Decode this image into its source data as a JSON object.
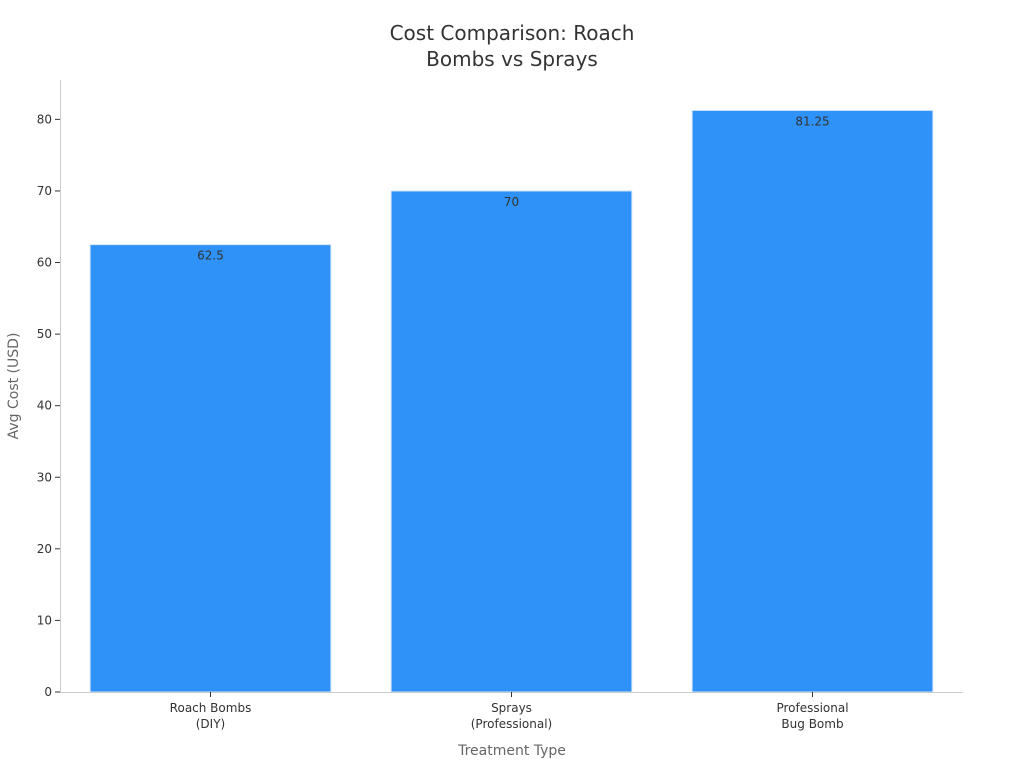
{
  "chart_data": {
    "type": "bar",
    "title": [
      "Cost Comparison: Roach",
      "Bombs vs Sprays"
    ],
    "xlabel": "Treatment Type",
    "ylabel": "Avg Cost (USD)",
    "categories": [
      [
        "Roach Bombs",
        "(DIY)"
      ],
      [
        "Sprays",
        "(Professional)"
      ],
      [
        "Professional",
        "Bug Bomb"
      ]
    ],
    "values": [
      62.5,
      70,
      81.25
    ],
    "data_labels": [
      "62.5",
      "70",
      "81.25"
    ],
    "ylim": [
      0,
      85.5
    ],
    "yticks": [
      0,
      10,
      20,
      30,
      40,
      50,
      60,
      70,
      80
    ],
    "grid": false,
    "legend": "none",
    "bar_color": "#2f92f8",
    "axis_color": "#cccccc",
    "tick_color": "#333333",
    "text_color": "#333333"
  }
}
